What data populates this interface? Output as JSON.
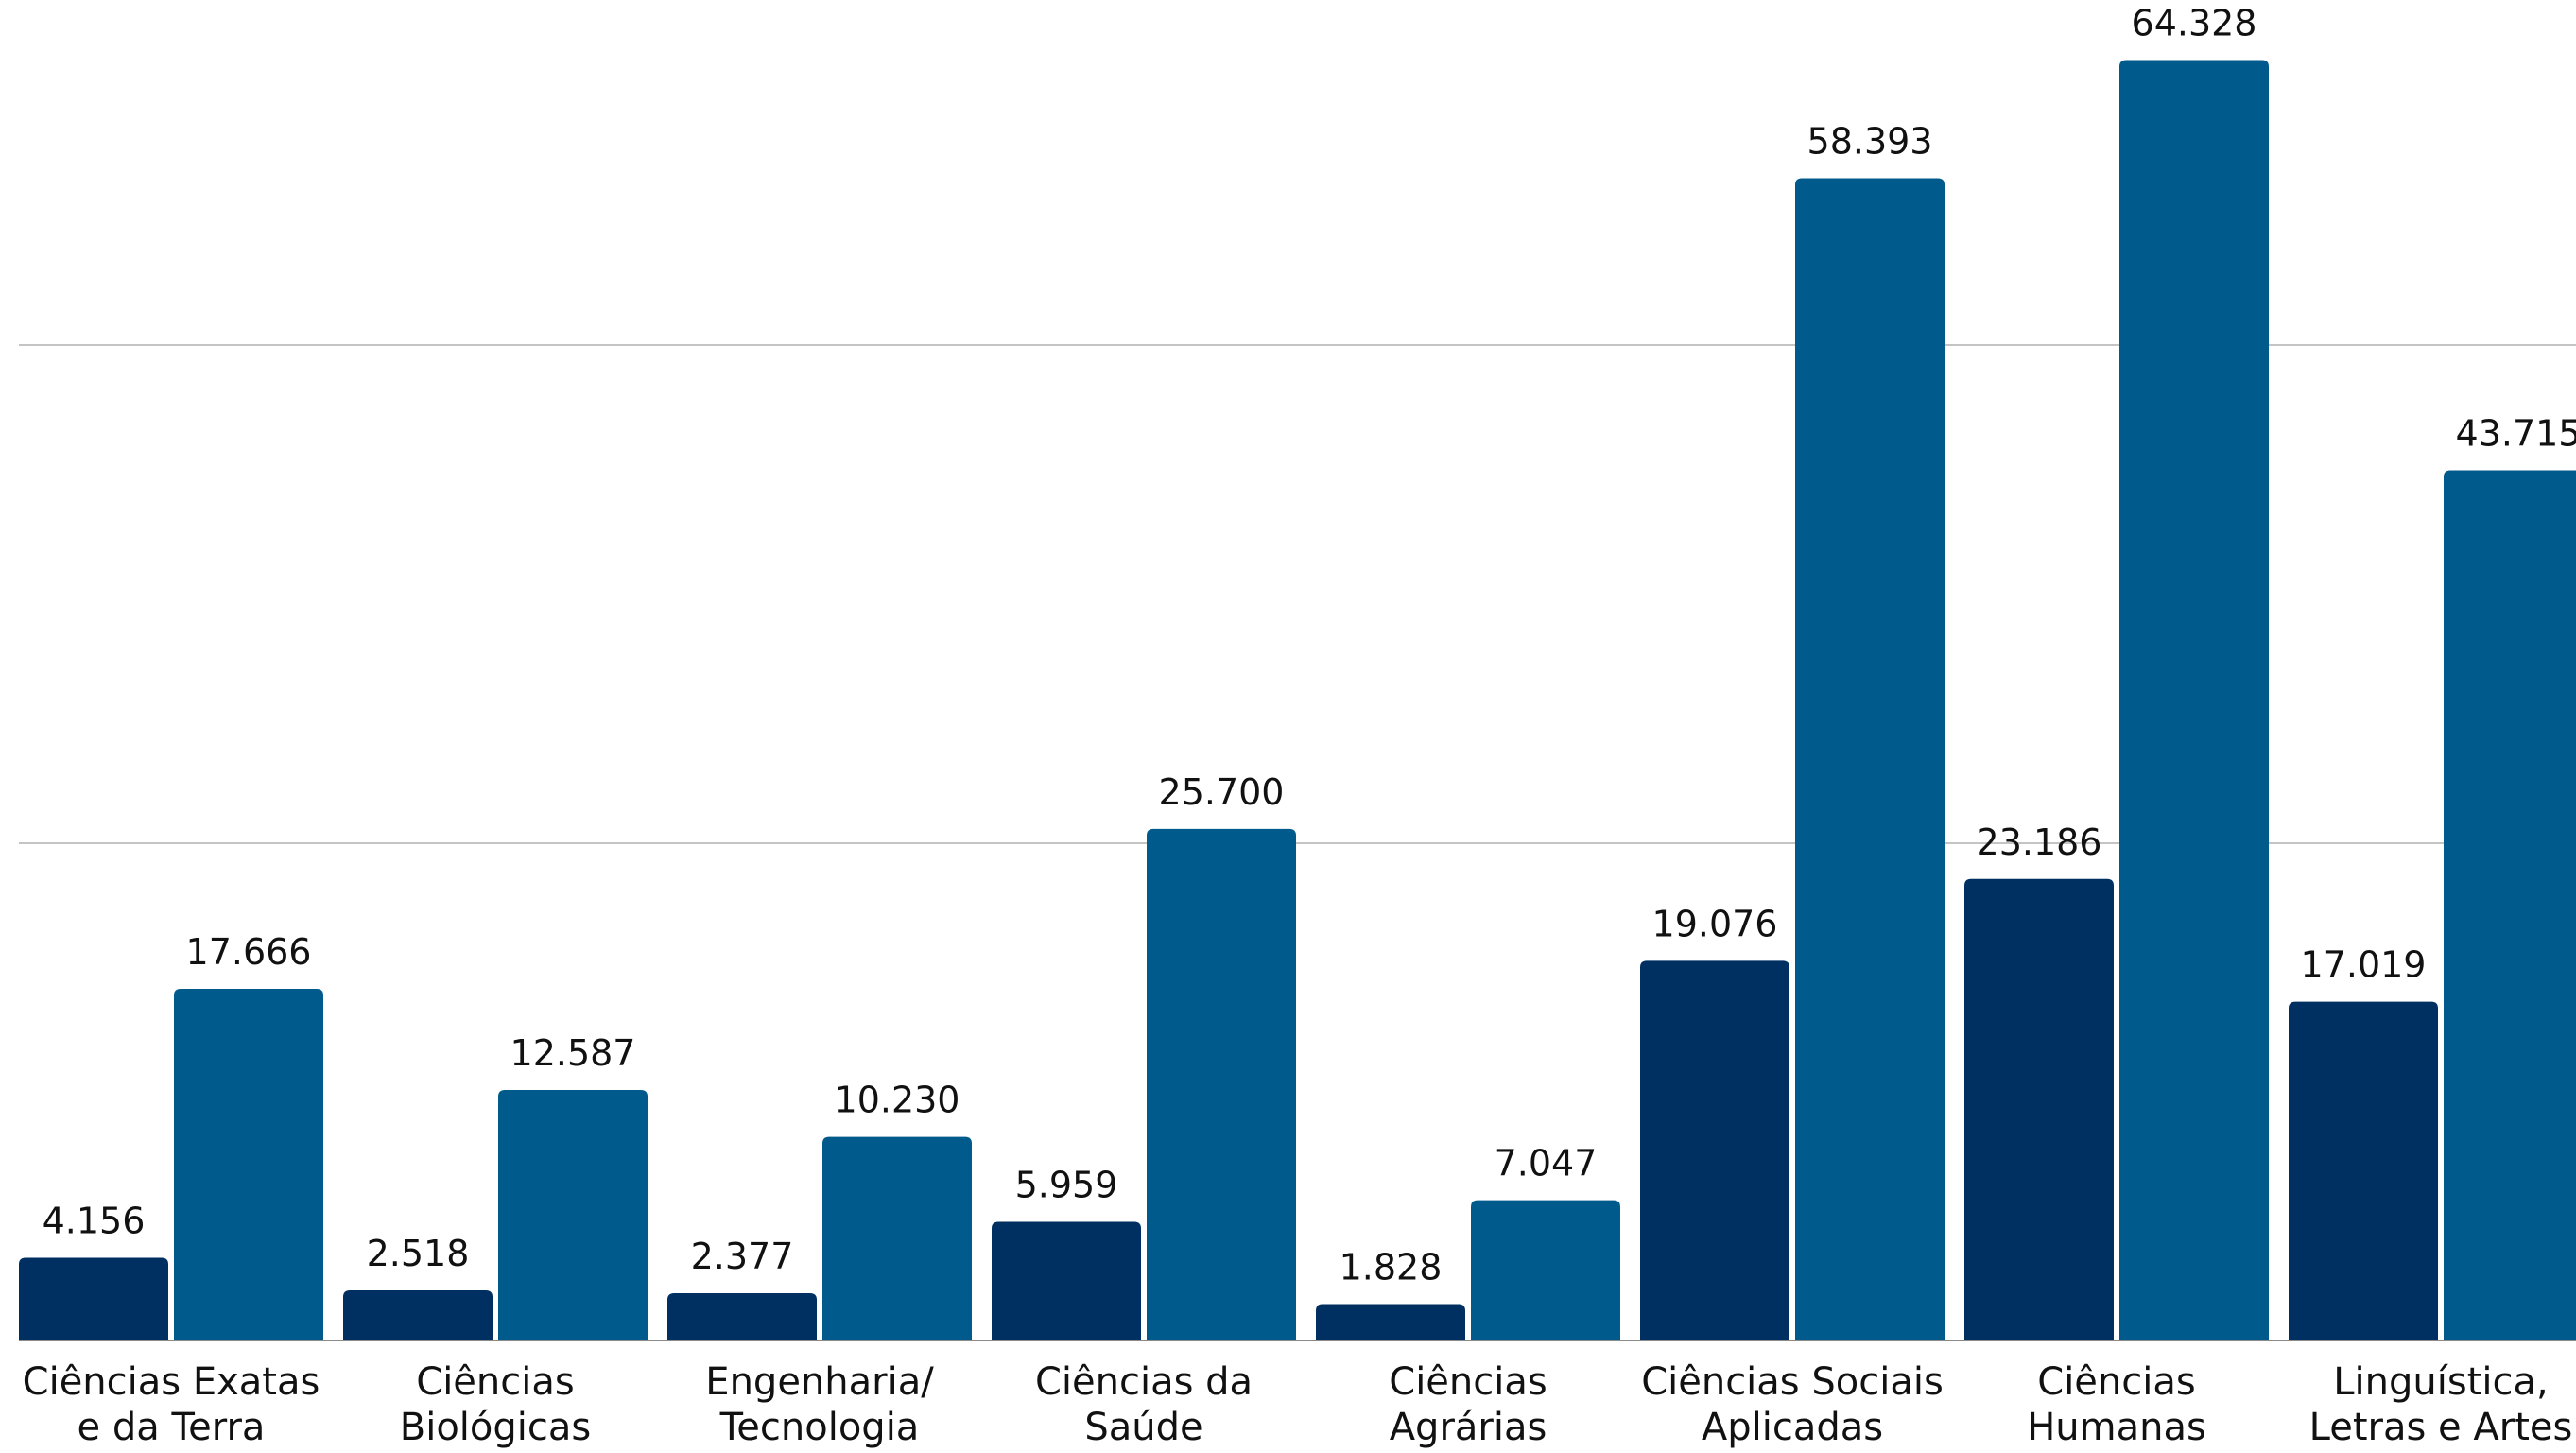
{
  "chart_data": {
    "type": "bar",
    "categories": [
      [
        "Ciências Exatas",
        "e da Terra"
      ],
      [
        "Ciências",
        "Biológicas"
      ],
      [
        "Engenharia/",
        "Tecnologia"
      ],
      [
        "Ciências da",
        "Saúde"
      ],
      [
        "Ciências",
        "Agrárias"
      ],
      [
        "Ciências Sociais",
        "Aplicadas"
      ],
      [
        "Ciências",
        "Humanas"
      ],
      [
        "Linguística,",
        "Letras e Artes"
      ]
    ],
    "series": [
      {
        "values": [
          4156,
          2518,
          2377,
          5959,
          1828,
          19076,
          23186,
          17019
        ],
        "value_labels": [
          "4.156",
          "2.518",
          "2.377",
          "5.959",
          "1.828",
          "19.076",
          "23.186",
          "17.019"
        ],
        "color": "#002f62"
      },
      {
        "values": [
          17666,
          12587,
          10230,
          25700,
          7047,
          58393,
          64328,
          43715
        ],
        "value_labels": [
          "17.666",
          "12.587",
          "10.230",
          "25.700",
          "7.047",
          "58.393",
          "64.328",
          "43.715"
        ],
        "color": "#005a8c"
      }
    ],
    "gridlines": [
      25000,
      50000
    ],
    "ylim": [
      0,
      67000
    ],
    "grid": true,
    "legend": "none"
  }
}
